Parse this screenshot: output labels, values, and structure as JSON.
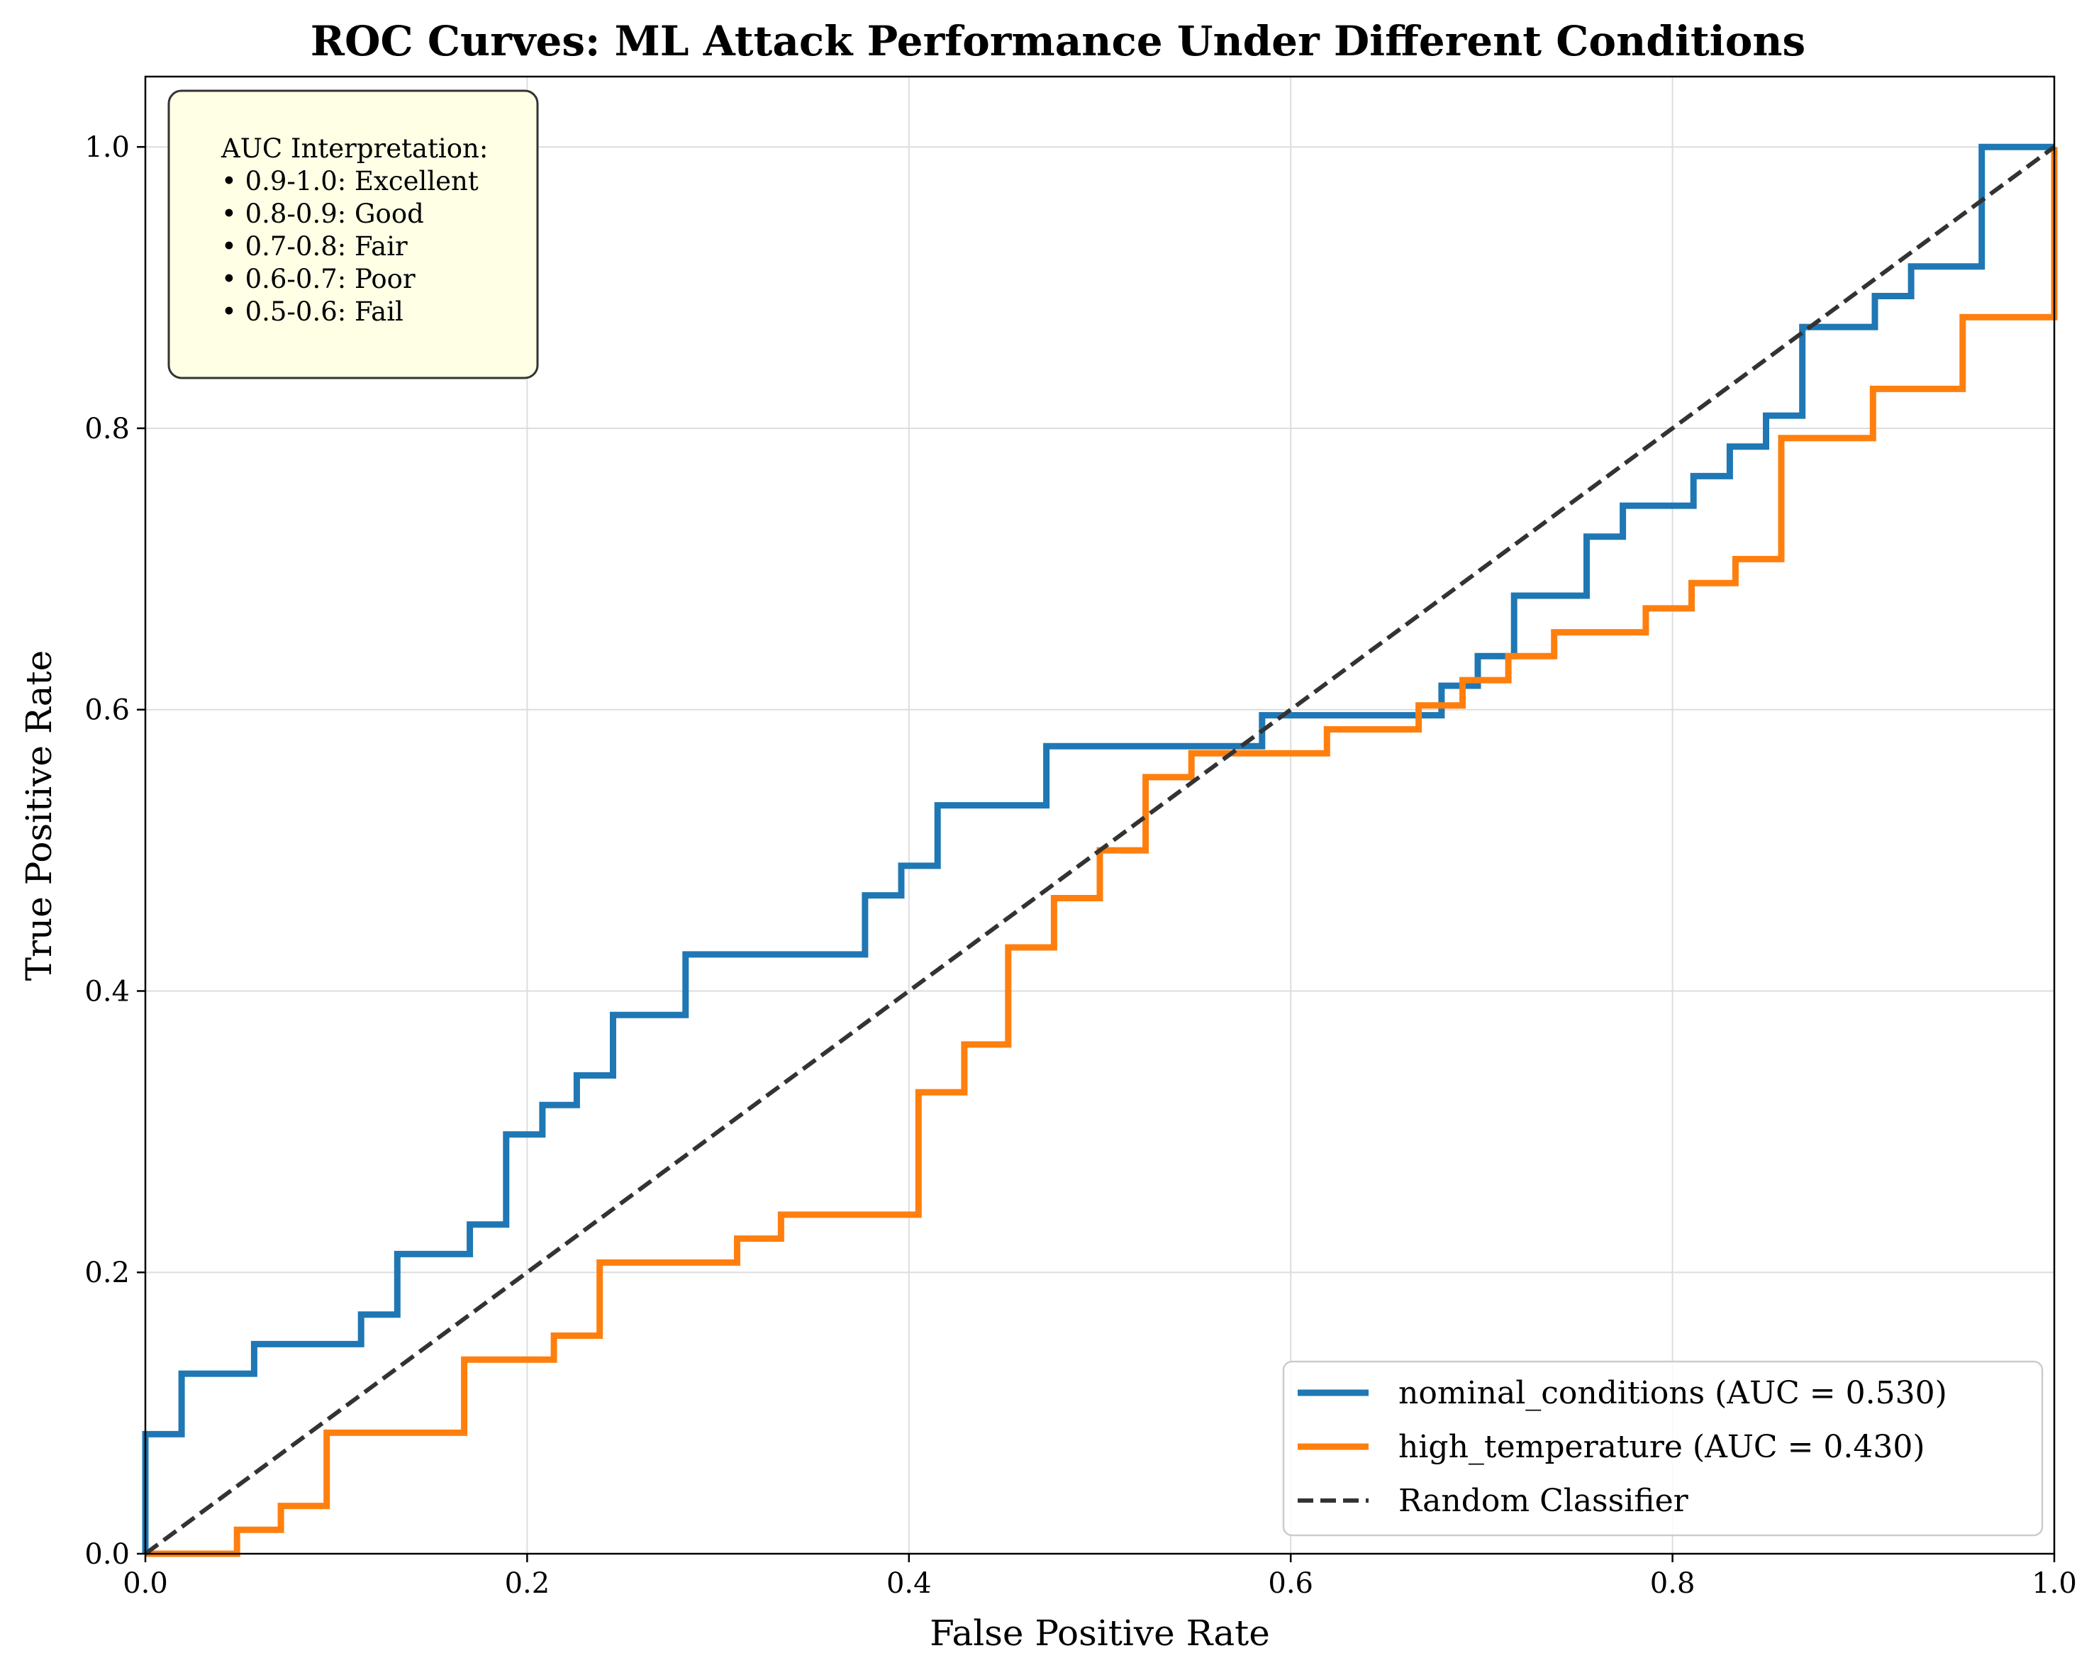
{
  "chart_data": {
    "type": "line",
    "title": "ROC Curves: ML Attack Performance Under Different Conditions",
    "xlabel": "False Positive Rate",
    "ylabel": "True Positive Rate",
    "xlim": [
      0.0,
      1.0
    ],
    "ylim": [
      0.0,
      1.05
    ],
    "xticks": [
      "0.0",
      "0.2",
      "0.4",
      "0.6",
      "0.8",
      "1.0"
    ],
    "yticks": [
      "0.0",
      "0.2",
      "0.4",
      "0.6",
      "0.8",
      "1.0"
    ],
    "grid": true,
    "legend_position": "lower-right",
    "series": [
      {
        "name": "nominal_conditions (AUC = 0.530)",
        "color": "#1f77b4",
        "style": "step",
        "points": [
          [
            0.0,
            0.0
          ],
          [
            0.0,
            0.085
          ],
          [
            0.019,
            0.085
          ],
          [
            0.019,
            0.128
          ],
          [
            0.057,
            0.128
          ],
          [
            0.057,
            0.149
          ],
          [
            0.113,
            0.149
          ],
          [
            0.113,
            0.17
          ],
          [
            0.132,
            0.17
          ],
          [
            0.132,
            0.213
          ],
          [
            0.17,
            0.213
          ],
          [
            0.17,
            0.234
          ],
          [
            0.189,
            0.234
          ],
          [
            0.189,
            0.298
          ],
          [
            0.208,
            0.298
          ],
          [
            0.208,
            0.319
          ],
          [
            0.226,
            0.319
          ],
          [
            0.226,
            0.34
          ],
          [
            0.245,
            0.34
          ],
          [
            0.245,
            0.383
          ],
          [
            0.283,
            0.383
          ],
          [
            0.283,
            0.426
          ],
          [
            0.377,
            0.426
          ],
          [
            0.377,
            0.468
          ],
          [
            0.396,
            0.468
          ],
          [
            0.396,
            0.489
          ],
          [
            0.415,
            0.489
          ],
          [
            0.415,
            0.532
          ],
          [
            0.472,
            0.532
          ],
          [
            0.472,
            0.574
          ],
          [
            0.585,
            0.574
          ],
          [
            0.585,
            0.596
          ],
          [
            0.679,
            0.596
          ],
          [
            0.679,
            0.617
          ],
          [
            0.698,
            0.617
          ],
          [
            0.698,
            0.638
          ],
          [
            0.717,
            0.638
          ],
          [
            0.717,
            0.681
          ],
          [
            0.755,
            0.681
          ],
          [
            0.755,
            0.723
          ],
          [
            0.774,
            0.723
          ],
          [
            0.774,
            0.745
          ],
          [
            0.811,
            0.745
          ],
          [
            0.811,
            0.766
          ],
          [
            0.83,
            0.766
          ],
          [
            0.83,
            0.787
          ],
          [
            0.849,
            0.787
          ],
          [
            0.849,
            0.809
          ],
          [
            0.868,
            0.809
          ],
          [
            0.868,
            0.872
          ],
          [
            0.906,
            0.872
          ],
          [
            0.906,
            0.894
          ],
          [
            0.925,
            0.894
          ],
          [
            0.925,
            0.915
          ],
          [
            0.962,
            0.915
          ],
          [
            0.962,
            1.0
          ],
          [
            1.0,
            1.0
          ]
        ]
      },
      {
        "name": "high_temperature (AUC = 0.430)",
        "color": "#ff7f0e",
        "style": "step",
        "points": [
          [
            0.0,
            0.0
          ],
          [
            0.048,
            0.0
          ],
          [
            0.048,
            0.017
          ],
          [
            0.071,
            0.017
          ],
          [
            0.071,
            0.034
          ],
          [
            0.095,
            0.034
          ],
          [
            0.095,
            0.086
          ],
          [
            0.167,
            0.086
          ],
          [
            0.167,
            0.138
          ],
          [
            0.214,
            0.138
          ],
          [
            0.214,
            0.155
          ],
          [
            0.238,
            0.155
          ],
          [
            0.238,
            0.207
          ],
          [
            0.31,
            0.207
          ],
          [
            0.31,
            0.224
          ],
          [
            0.333,
            0.224
          ],
          [
            0.333,
            0.241
          ],
          [
            0.405,
            0.241
          ],
          [
            0.405,
            0.328
          ],
          [
            0.429,
            0.328
          ],
          [
            0.429,
            0.362
          ],
          [
            0.452,
            0.362
          ],
          [
            0.452,
            0.431
          ],
          [
            0.476,
            0.431
          ],
          [
            0.476,
            0.466
          ],
          [
            0.5,
            0.466
          ],
          [
            0.5,
            0.5
          ],
          [
            0.524,
            0.5
          ],
          [
            0.524,
            0.552
          ],
          [
            0.548,
            0.552
          ],
          [
            0.548,
            0.569
          ],
          [
            0.619,
            0.569
          ],
          [
            0.619,
            0.586
          ],
          [
            0.667,
            0.586
          ],
          [
            0.667,
            0.603
          ],
          [
            0.69,
            0.603
          ],
          [
            0.69,
            0.621
          ],
          [
            0.714,
            0.621
          ],
          [
            0.714,
            0.638
          ],
          [
            0.738,
            0.638
          ],
          [
            0.738,
            0.655
          ],
          [
            0.786,
            0.655
          ],
          [
            0.786,
            0.672
          ],
          [
            0.81,
            0.672
          ],
          [
            0.81,
            0.69
          ],
          [
            0.833,
            0.69
          ],
          [
            0.833,
            0.707
          ],
          [
            0.857,
            0.707
          ],
          [
            0.857,
            0.793
          ],
          [
            0.905,
            0.793
          ],
          [
            0.905,
            0.828
          ],
          [
            0.952,
            0.828
          ],
          [
            0.952,
            0.879
          ],
          [
            1.0,
            0.879
          ],
          [
            1.0,
            1.0
          ]
        ]
      },
      {
        "name": "Random Classifier",
        "color": "#333333",
        "style": "dashed",
        "points": [
          [
            0.0,
            0.0
          ],
          [
            1.0,
            1.0
          ]
        ]
      }
    ],
    "annotation": {
      "title": "AUC Interpretation:",
      "lines": [
        "• 0.9-1.0: Excellent",
        "• 0.8-0.9: Good",
        "• 0.7-0.8: Fair",
        "• 0.6-0.7: Poor",
        "• 0.5-0.6: Fail"
      ]
    }
  }
}
